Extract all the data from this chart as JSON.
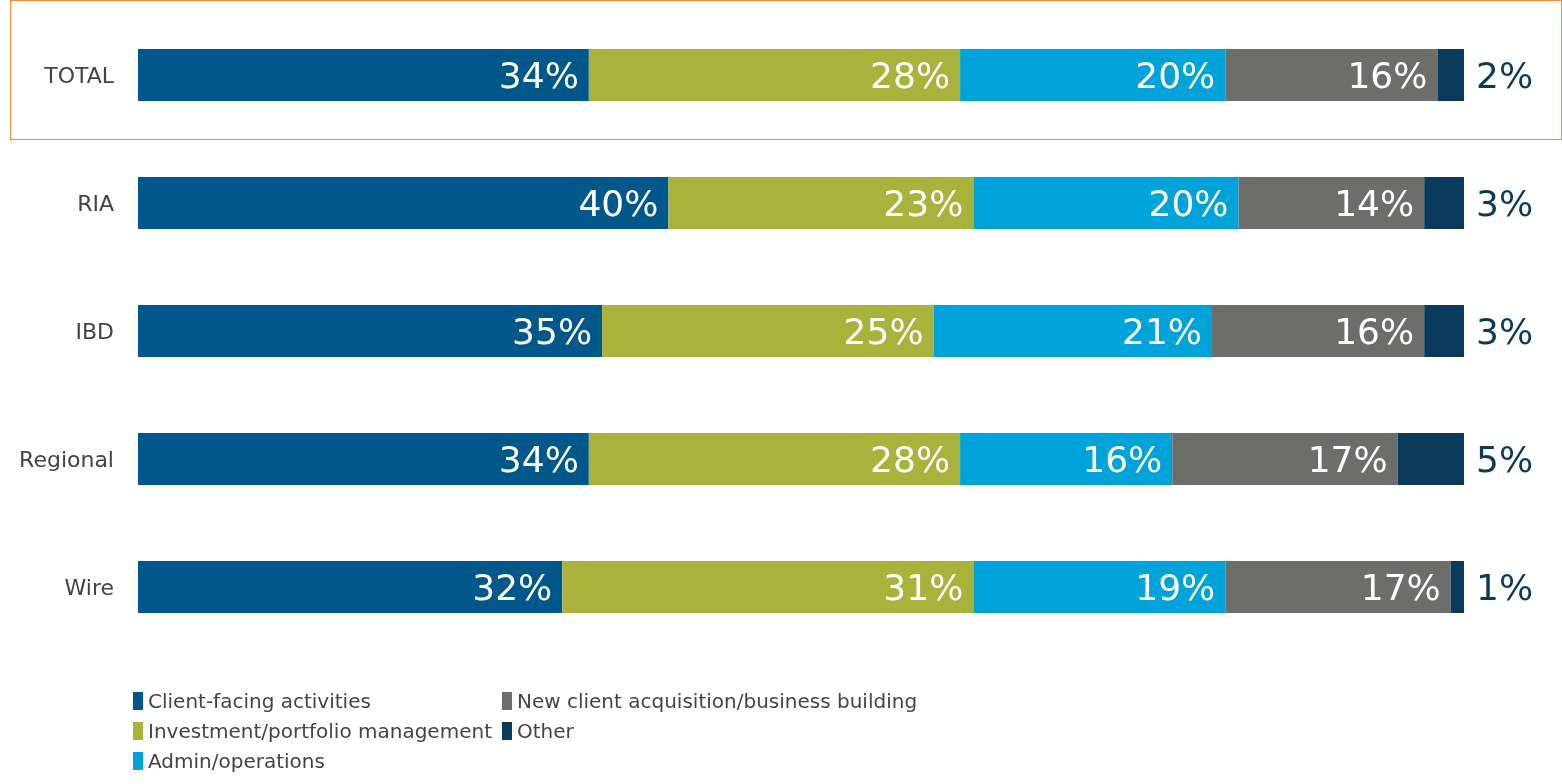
{
  "chart_data": {
    "type": "bar",
    "orientation": "horizontal",
    "stacked": true,
    "categories": [
      "TOTAL",
      "RIA",
      "IBD",
      "Regional",
      "Wire"
    ],
    "series": [
      {
        "name": "Client-facing activities",
        "color": "#00578a",
        "values": [
          34,
          40,
          35,
          34,
          32
        ],
        "value_labels": [
          "34%",
          "40%",
          "35%",
          "34%",
          "32%"
        ]
      },
      {
        "name": "Investment/portfolio management",
        "color": "#a9b23a",
        "values": [
          28,
          23,
          25,
          28,
          31
        ],
        "value_labels": [
          "28%",
          "23%",
          "25%",
          "28%",
          "31%"
        ]
      },
      {
        "name": "Admin/operations",
        "color": "#00a3d9",
        "values": [
          20,
          20,
          21,
          16,
          19
        ],
        "value_labels": [
          "20%",
          "20%",
          "21%",
          "16%",
          "19%"
        ]
      },
      {
        "name": "New client acquisition/business building",
        "color": "#6d6e6c",
        "values": [
          16,
          14,
          16,
          17,
          17
        ],
        "value_labels": [
          "16%",
          "14%",
          "16%",
          "17%",
          "17%"
        ]
      },
      {
        "name": "Other",
        "color": "#0b3a5c",
        "values": [
          2,
          3,
          3,
          5,
          1
        ],
        "value_labels": [
          "2%",
          "3%",
          "3%",
          "5%",
          "1%"
        ]
      }
    ],
    "legend": "bottom left"
  }
}
